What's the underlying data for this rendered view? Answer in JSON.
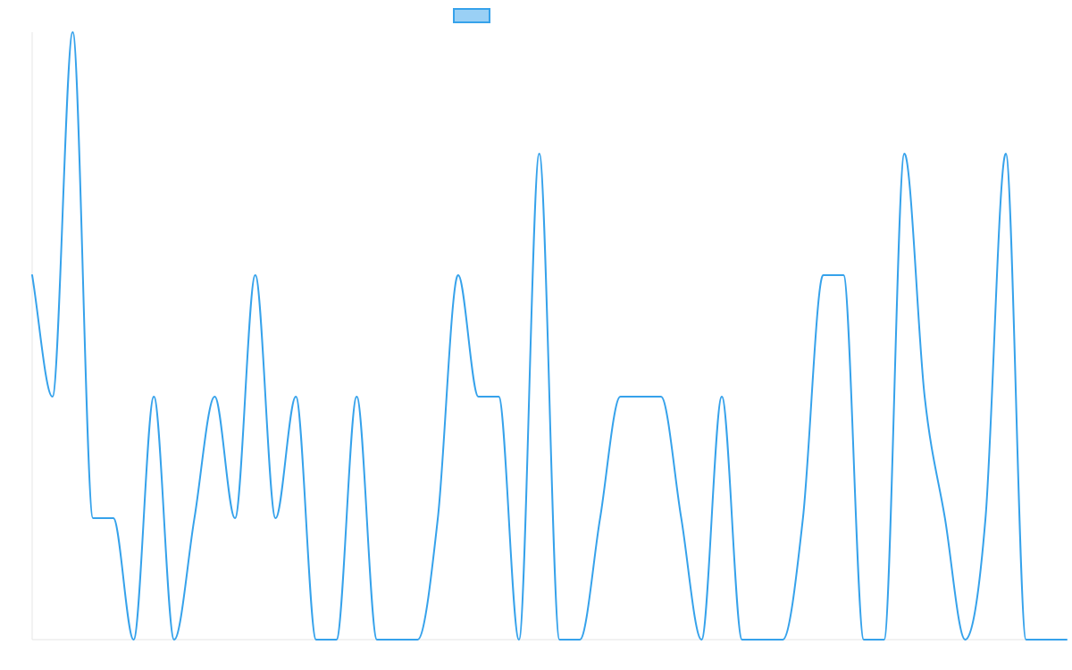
{
  "chart_data": {
    "type": "line",
    "title": "",
    "xlabel": "",
    "ylabel": "",
    "legend_position": "top-center",
    "grid": false,
    "x": [
      0,
      1,
      2,
      3,
      4,
      5,
      6,
      7,
      8,
      9,
      10,
      11,
      12,
      13,
      14,
      15,
      16,
      17,
      18,
      19,
      20,
      21,
      22,
      23,
      24,
      25,
      26,
      27,
      28,
      29,
      30,
      31,
      32,
      33,
      34,
      35,
      36,
      37,
      38,
      39,
      40,
      41,
      42,
      43,
      44,
      45,
      46,
      47,
      48,
      49,
      50,
      51
    ],
    "xlim": [
      0,
      51
    ],
    "ylim": [
      0,
      5
    ],
    "series": [
      {
        "color": "#36a2eb",
        "fill_color": "#9ad0f5",
        "values": [
          3,
          2,
          5,
          1,
          1,
          0,
          2,
          0,
          1,
          2,
          1,
          3,
          1,
          2,
          0,
          0,
          2,
          0,
          0,
          0,
          1,
          3,
          2,
          2,
          0,
          4,
          0,
          0,
          1,
          2,
          2,
          2,
          1,
          0,
          2,
          0,
          0,
          0,
          1,
          3,
          3,
          0,
          0,
          4,
          2,
          1,
          0,
          1,
          4,
          0,
          0,
          0
        ]
      }
    ]
  }
}
